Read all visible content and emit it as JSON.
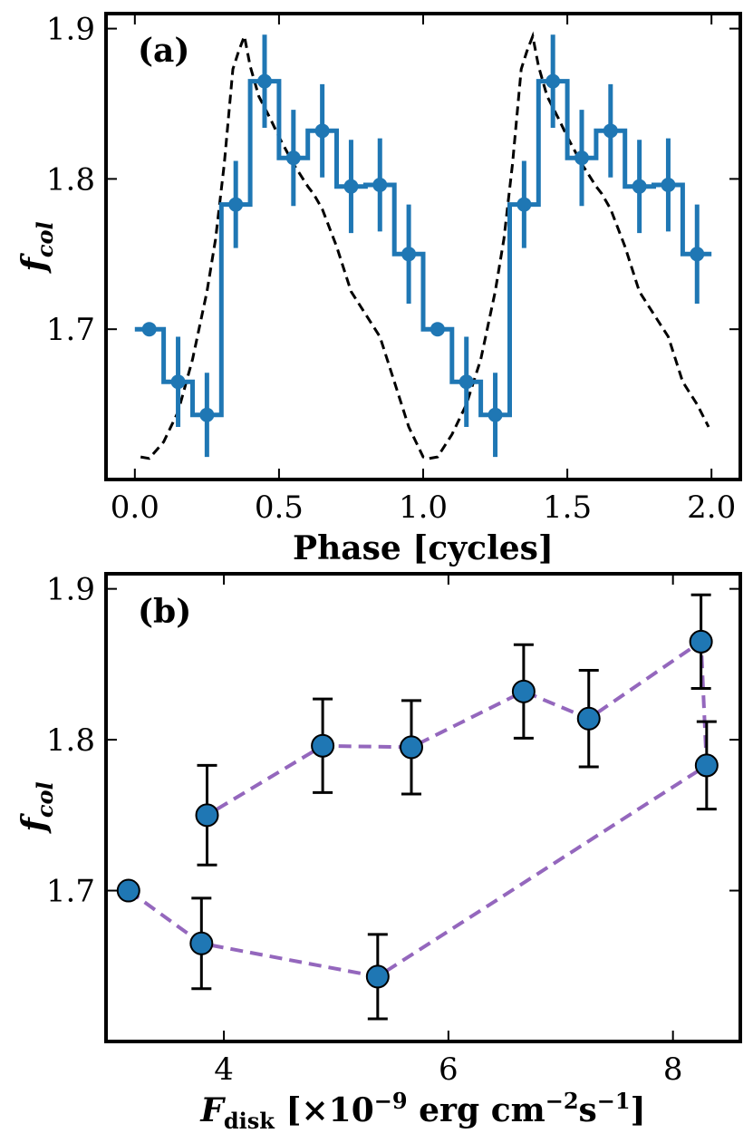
{
  "chart_data": [
    {
      "panel_label": "(a)",
      "type": "line",
      "xlabel": "Phase [cycles]",
      "ylabel_main": "f",
      "ylabel_sub": "col",
      "xlim": [
        -0.1,
        2.1
      ],
      "ylim": [
        1.6,
        1.91
      ],
      "xticks": [
        0.0,
        0.5,
        1.0,
        1.5,
        2.0
      ],
      "xtick_labels": [
        "0.0",
        "0.5",
        "1.0",
        "1.5",
        "2.0"
      ],
      "yticks": [
        1.7,
        1.8,
        1.9
      ],
      "ytick_labels": [
        "1.7",
        "1.8",
        "1.9"
      ],
      "colors": {
        "data": "#1f77b4",
        "model": "#000000"
      },
      "series": [
        {
          "kind": "step-errorbar",
          "x": [
            0.05,
            0.15,
            0.25,
            0.35,
            0.45,
            0.55,
            0.65,
            0.75,
            0.85,
            0.95,
            1.05,
            1.15,
            1.25,
            1.35,
            1.45,
            1.55,
            1.65,
            1.75,
            1.85,
            1.95
          ],
          "y": [
            1.7,
            1.665,
            1.643,
            1.783,
            1.865,
            1.814,
            1.832,
            1.795,
            1.796,
            1.75,
            1.7,
            1.665,
            1.643,
            1.783,
            1.865,
            1.814,
            1.832,
            1.795,
            1.796,
            1.75
          ],
          "yerr": [
            0.0,
            0.03,
            0.028,
            0.029,
            0.031,
            0.032,
            0.031,
            0.031,
            0.031,
            0.033,
            0.0,
            0.03,
            0.028,
            0.029,
            0.031,
            0.032,
            0.031,
            0.031,
            0.031,
            0.033
          ]
        },
        {
          "kind": "dashed-model",
          "x": [
            0.02,
            0.05,
            0.1,
            0.15,
            0.2,
            0.25,
            0.28,
            0.31,
            0.34,
            0.36,
            0.38,
            0.4,
            0.43,
            0.47,
            0.5,
            0.55,
            0.6,
            0.62,
            0.65,
            0.7,
            0.75,
            0.8,
            0.85,
            0.9,
            0.95,
            1.0,
            1.02,
            1.05,
            1.1,
            1.15,
            1.2,
            1.25,
            1.28,
            1.31,
            1.34,
            1.36,
            1.38,
            1.4,
            1.43,
            1.47,
            1.5,
            1.55,
            1.6,
            1.62,
            1.65,
            1.7,
            1.75,
            1.8,
            1.85,
            1.9,
            1.95,
            1.99
          ],
          "y": [
            1.615,
            1.614,
            1.625,
            1.645,
            1.68,
            1.725,
            1.76,
            1.81,
            1.873,
            1.885,
            1.895,
            1.875,
            1.855,
            1.84,
            1.828,
            1.81,
            1.795,
            1.79,
            1.78,
            1.755,
            1.725,
            1.71,
            1.695,
            1.665,
            1.635,
            1.615,
            1.614,
            1.615,
            1.63,
            1.65,
            1.68,
            1.725,
            1.76,
            1.81,
            1.873,
            1.885,
            1.895,
            1.875,
            1.855,
            1.84,
            1.828,
            1.81,
            1.795,
            1.79,
            1.78,
            1.755,
            1.725,
            1.71,
            1.695,
            1.665,
            1.65,
            1.635
          ]
        }
      ]
    },
    {
      "panel_label": "(b)",
      "type": "scatter",
      "xlabel_main": "F",
      "xlabel_sub": "disk",
      "xlabel_rest": " [×10",
      "xlabel_exp1": "−9",
      "xlabel_mid": " erg cm",
      "xlabel_exp2": "−2",
      "xlabel_mid2": "s",
      "xlabel_exp3": "−1",
      "xlabel_end": "]",
      "ylabel_main": "f",
      "ylabel_sub": "col",
      "xlim": [
        2.95,
        8.6
      ],
      "ylim": [
        1.6,
        1.91
      ],
      "xticks": [
        4,
        6,
        8
      ],
      "xtick_labels": [
        "4",
        "6",
        "8"
      ],
      "yticks": [
        1.7,
        1.8,
        1.9
      ],
      "ytick_labels": [
        "1.7",
        "1.8",
        "1.9"
      ],
      "colors": {
        "marker": "#1f77b4",
        "line": "#9467bd",
        "errorbar": "#000000"
      },
      "points": {
        "x": [
          3.15,
          3.8,
          5.37,
          8.3,
          8.25,
          7.25,
          6.67,
          5.67,
          4.88,
          3.85
        ],
        "y": [
          1.7,
          1.665,
          1.643,
          1.783,
          1.865,
          1.814,
          1.832,
          1.795,
          1.796,
          1.75
        ],
        "yerr": [
          0.0,
          0.03,
          0.028,
          0.029,
          0.031,
          0.032,
          0.031,
          0.031,
          0.031,
          0.033
        ]
      }
    }
  ]
}
